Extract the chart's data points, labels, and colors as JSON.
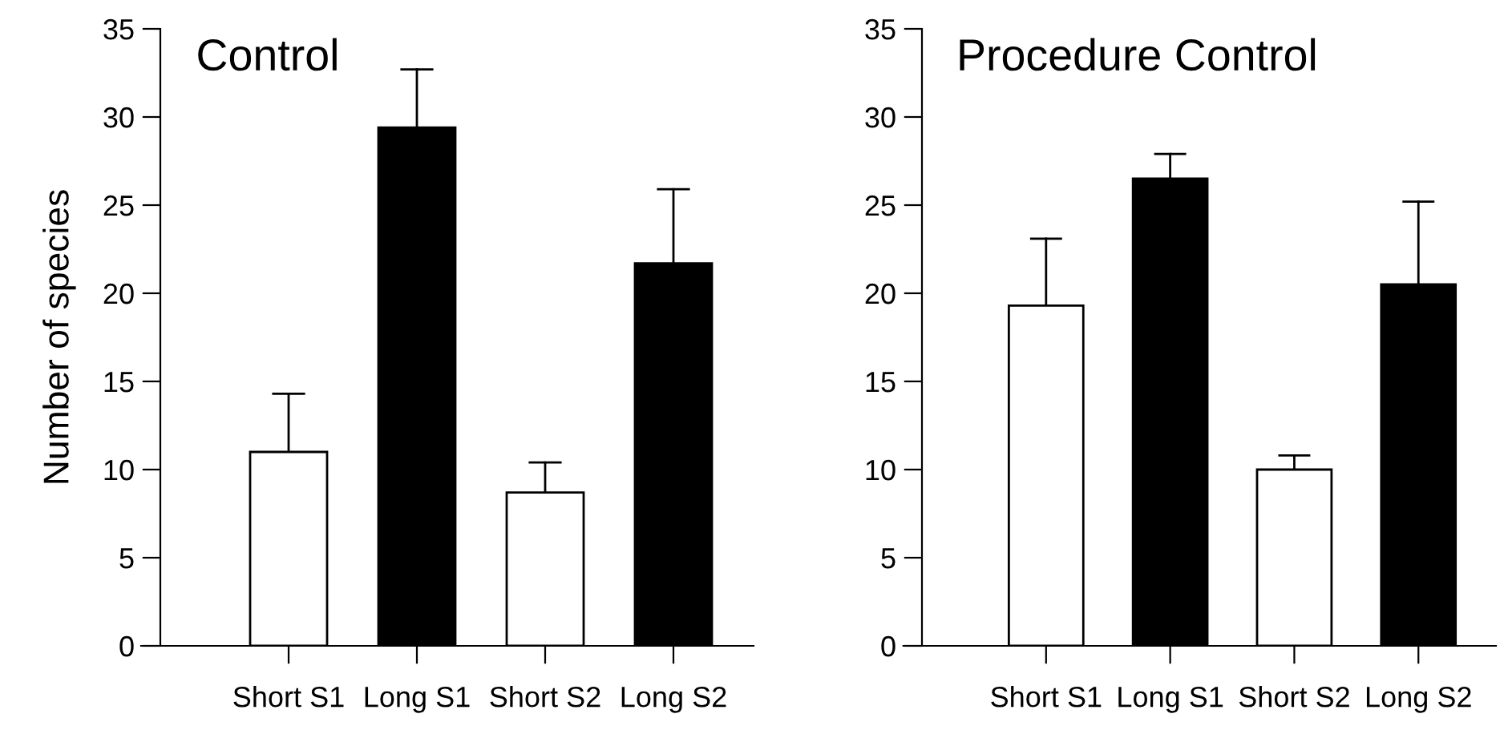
{
  "chart_data": [
    {
      "type": "bar",
      "title": "Control",
      "ylabel": "Number of species",
      "categories": [
        "Short S1",
        "Long S1",
        "Short S2",
        "Long S2"
      ],
      "values": [
        11.0,
        29.4,
        8.7,
        21.7
      ],
      "colors": [
        "#ffffff",
        "#000000",
        "#ffffff",
        "#000000"
      ],
      "errors": [
        [
          11.0,
          14.3
        ],
        [
          29.4,
          32.7
        ],
        [
          8.7,
          10.4
        ],
        [
          21.7,
          25.9
        ]
      ],
      "ylim": [
        0,
        35
      ],
      "yticks": [
        0,
        5,
        10,
        15,
        20,
        25,
        30,
        35
      ],
      "grid": false,
      "legend": false
    },
    {
      "type": "bar",
      "title": "Procedure Control",
      "categories": [
        "Short S1",
        "Long S1",
        "Short S2",
        "Long S2"
      ],
      "values": [
        19.3,
        26.5,
        10.0,
        20.5
      ],
      "colors": [
        "#ffffff",
        "#000000",
        "#ffffff",
        "#000000"
      ],
      "errors": [
        [
          19.3,
          23.1
        ],
        [
          26.5,
          27.9
        ],
        [
          10.0,
          10.8
        ],
        [
          20.5,
          25.2
        ]
      ],
      "ylim": [
        0,
        35
      ],
      "yticks": [
        0,
        5,
        10,
        15,
        20,
        25,
        30,
        35
      ],
      "grid": false,
      "legend": false
    }
  ]
}
